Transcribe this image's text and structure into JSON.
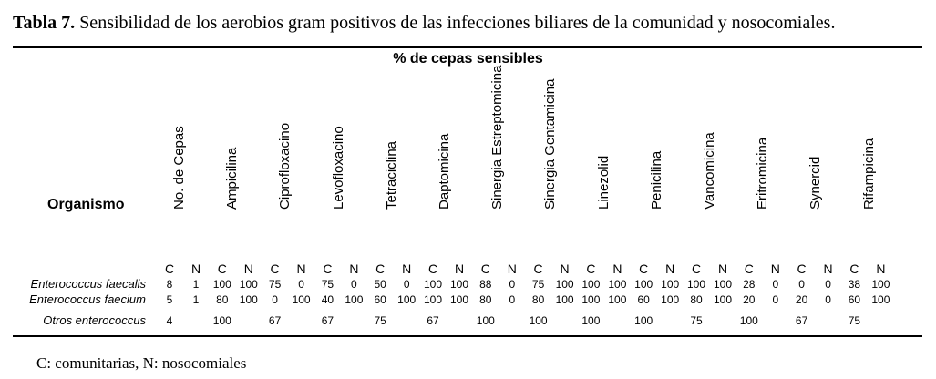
{
  "caption": {
    "label": "Tabla 7.",
    "text": " Sensibilidad de los aerobios gram positivos de las infecciones biliares de la comunidad y nosocomiales."
  },
  "table": {
    "group_header": "% de cepas sensibles",
    "organism_header": "Organismo",
    "columns": [
      "No. de Cepas",
      "Ampicilina",
      "Ciprofloxacino",
      "Levofloxacino",
      "Tetraciclina",
      "Daptomicina",
      "Sinergia Estreptomicina",
      "Sinergia Gentamicina",
      "Linezolid",
      "Penicilina",
      "Vancomicina",
      "Eritromicina",
      "Synercid",
      "Rifampicina"
    ],
    "subheaders": [
      "C",
      "N"
    ],
    "rows": [
      {
        "name": "Enterococcus faecalis",
        "values": [
          "8",
          "1",
          "100",
          "100",
          "75",
          "0",
          "75",
          "0",
          "50",
          "0",
          "100",
          "100",
          "88",
          "0",
          "75",
          "100",
          "100",
          "100",
          "100",
          "100",
          "100",
          "100",
          "28",
          "0",
          "0",
          "0",
          "38",
          "100"
        ]
      },
      {
        "name": "Enterococcus faecium",
        "values": [
          "5",
          "1",
          "80",
          "100",
          "0",
          "100",
          "40",
          "100",
          "60",
          "100",
          "100",
          "100",
          "80",
          "0",
          "80",
          "100",
          "100",
          "100",
          "60",
          "100",
          "80",
          "100",
          "20",
          "0",
          "20",
          "0",
          "60",
          "100"
        ]
      },
      {
        "name": "Otros enterococcus",
        "values": [
          "4",
          "",
          "100",
          "",
          "67",
          "",
          "67",
          "",
          "75",
          "",
          "67",
          "",
          "100",
          "",
          "100",
          "",
          "100",
          "",
          "100",
          "",
          "75",
          "",
          "100",
          "",
          "67",
          "",
          "75",
          ""
        ]
      }
    ]
  },
  "footnote": "C: comunitarias, N: nosocomiales"
}
